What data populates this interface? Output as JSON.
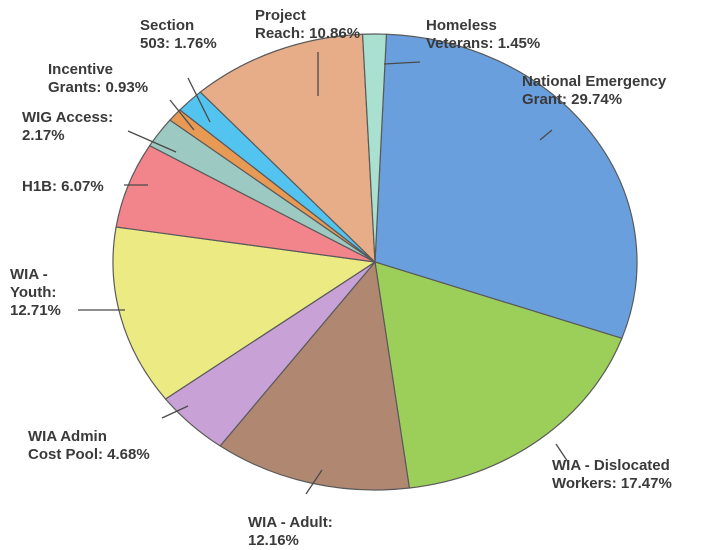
{
  "chart_data": {
    "type": "pie",
    "title": "",
    "colors": {
      "national_emergency_grant": "#6a9fde",
      "wia_dislocated_workers": "#9ccf5a",
      "wia_adult": "#b08872",
      "wia_admin_cost_pool": "#c8a2d6",
      "wia_youth": "#ecea82",
      "h1b": "#f2848c",
      "wig_access": "#9cc9c1",
      "incentive_grants": "#e89a55",
      "section_503": "#52c4ef",
      "project_reach": "#e7ad89",
      "homeless_veterans": "#a9e0d0"
    },
    "slices": [
      {
        "key": "national_emergency_grant",
        "value": 29.74,
        "label": [
          "National Emergency",
          "Grant:  29.74%"
        ]
      },
      {
        "key": "wia_dislocated_workers",
        "value": 17.47,
        "label": [
          "WIA - Dislocated",
          "Workers:  17.47%"
        ]
      },
      {
        "key": "wia_adult",
        "value": 12.16,
        "label": [
          "WIA - Adult:",
          "12.16%"
        ]
      },
      {
        "key": "wia_admin_cost_pool",
        "value": 4.68,
        "label": [
          "WIA Admin",
          "Cost Pool: 4.68%"
        ]
      },
      {
        "key": "wia_youth",
        "value": 12.71,
        "label": [
          "WIA -",
          "Youth:",
          "12.71%"
        ]
      },
      {
        "key": "h1b",
        "value": 6.07,
        "label": [
          "H1B: 6.07%"
        ]
      },
      {
        "key": "wig_access",
        "value": 2.17,
        "label": [
          "WIG Access:",
          "2.17%"
        ]
      },
      {
        "key": "incentive_grants",
        "value": 0.93,
        "label": [
          "Incentive",
          "Grants: 0.93%"
        ]
      },
      {
        "key": "section_503",
        "value": 1.76,
        "label": [
          "Section",
          "503: 1.76%"
        ]
      },
      {
        "key": "project_reach",
        "value": 10.86,
        "label": [
          "Project",
          "Reach: 10.86%"
        ]
      },
      {
        "key": "homeless_veterans",
        "value": 1.45,
        "label": [
          "Homeless",
          "Veterans: 1.45%"
        ]
      }
    ]
  }
}
